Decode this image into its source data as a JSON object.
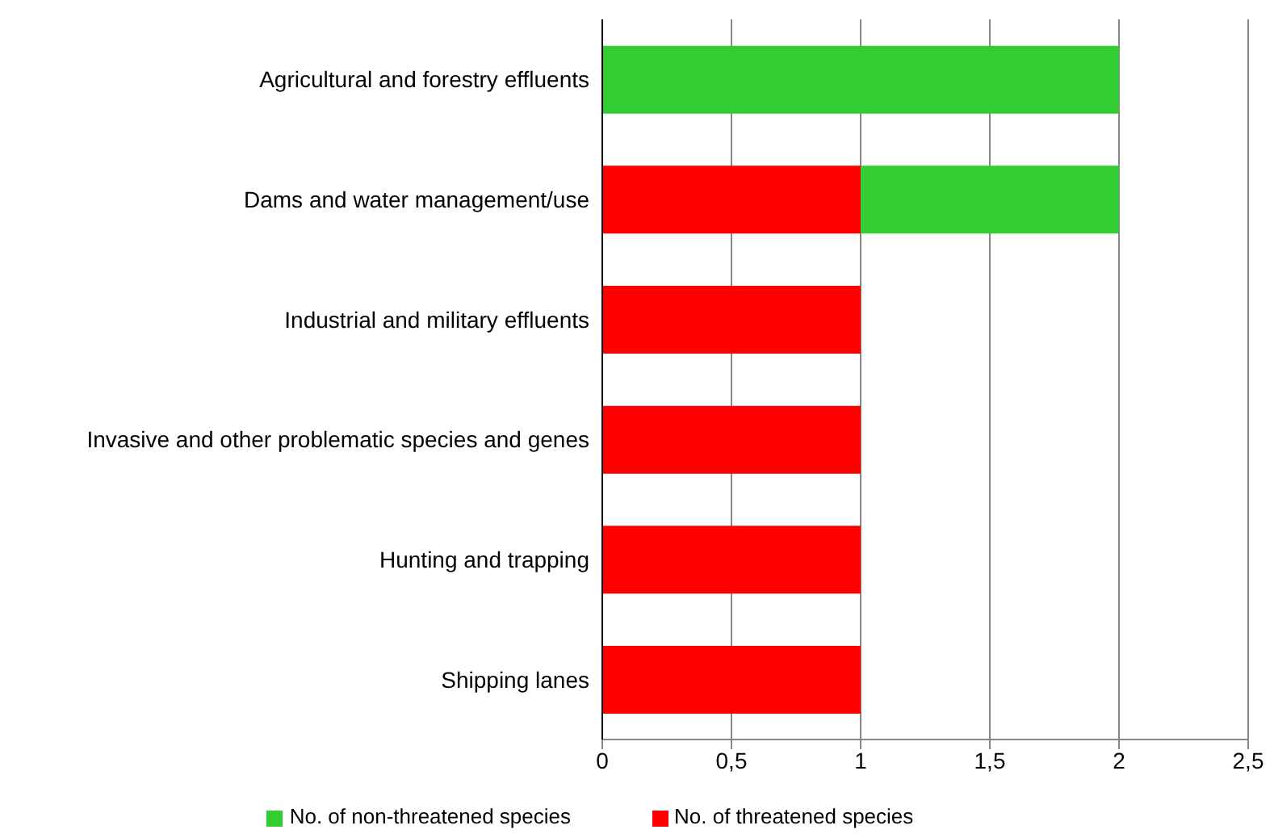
{
  "chart_data": {
    "type": "bar",
    "orientation": "horizontal",
    "stacked": true,
    "categories": [
      "Agricultural and forestry effluents",
      "Dams and water management/use",
      "Industrial and military effluents",
      "Invasive and other problematic species and genes",
      "Hunting and trapping",
      "Shipping lanes"
    ],
    "series": [
      {
        "name": "No. of threatened species",
        "color": "#ff0000",
        "values": [
          0,
          1,
          1,
          1,
          1,
          1
        ]
      },
      {
        "name": "No. of non-threatened species",
        "color": "#33cc33",
        "values": [
          2,
          1,
          0,
          0,
          0,
          0
        ]
      }
    ],
    "xlim": [
      0,
      2.5
    ],
    "xticks": [
      0,
      {
        "value": 0.5,
        "label": "0,5"
      },
      1,
      {
        "value": 1.5,
        "label": "1,5"
      },
      2,
      {
        "value": 2.5,
        "label": "2,5"
      }
    ],
    "grid": "x",
    "legend": "bottom"
  }
}
